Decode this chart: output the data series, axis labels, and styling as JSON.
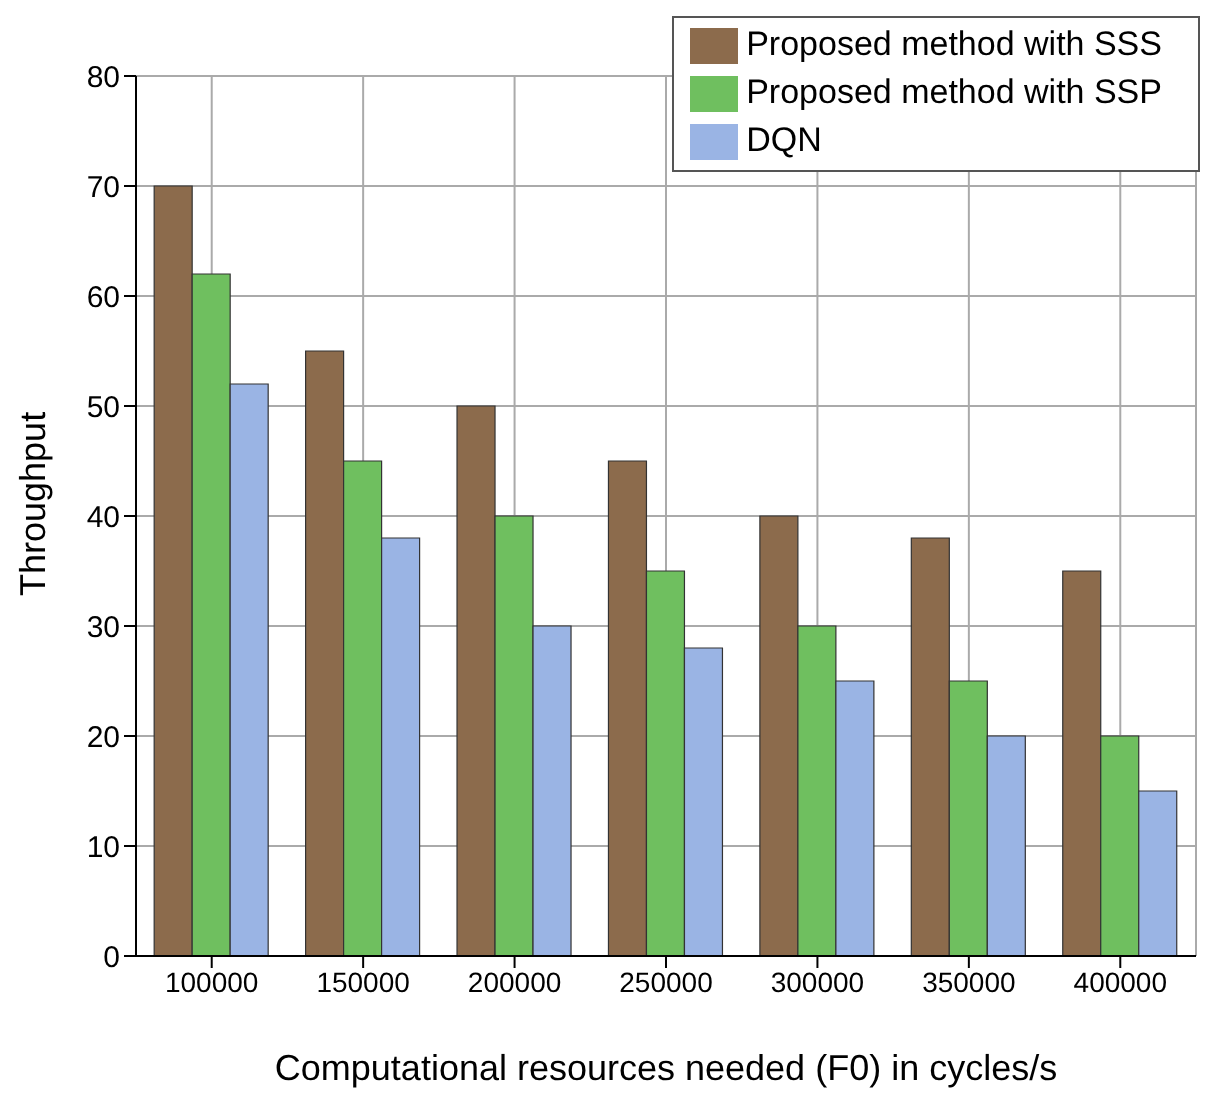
{
  "chart_data": {
    "type": "bar",
    "xlabel": "Computational resources needed (F0) in cycles/s",
    "ylabel": "Throughput",
    "categories": [
      "100000",
      "150000",
      "200000",
      "250000",
      "300000",
      "350000",
      "400000"
    ],
    "series": [
      {
        "name": "Proposed method with SSS",
        "color": "#8c6b4c",
        "values": [
          70,
          55,
          50,
          45,
          40,
          38,
          35
        ]
      },
      {
        "name": "Proposed method with SSP",
        "color": "#6fbf5f",
        "values": [
          62,
          45,
          40,
          35,
          30,
          25,
          20
        ]
      },
      {
        "name": "DQN",
        "color": "#9ab4e4",
        "values": [
          52,
          38,
          30,
          28,
          25,
          20,
          15
        ]
      }
    ],
    "ylim": [
      0,
      80
    ],
    "yticks": [
      0,
      10,
      20,
      30,
      40,
      50,
      60,
      70,
      80
    ],
    "grid": true,
    "legend": "top right"
  }
}
